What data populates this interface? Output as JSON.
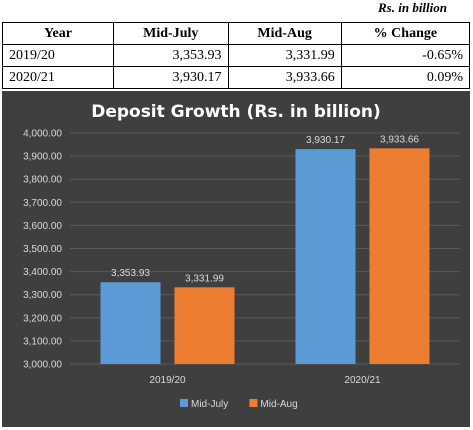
{
  "unit_note": "Rs. in billion",
  "table": {
    "headers": [
      "Year",
      "Mid-July",
      "Mid-Aug",
      "% Change"
    ],
    "rows": [
      [
        "2019/20",
        "3,353.93",
        "3,331.99",
        "-0.65%"
      ],
      [
        "2020/21",
        "3,930.17",
        "3,933.66",
        "0.09%"
      ]
    ]
  },
  "chart_data": {
    "type": "bar",
    "title": "Deposit Growth (Rs. in billion)",
    "categories": [
      "2019/20",
      "2020/21"
    ],
    "series": [
      {
        "name": "Mid-July",
        "values": [
          3353.93,
          3930.17
        ],
        "labels": [
          "3,353.93",
          "3,930.17"
        ],
        "color": "#5b9bd5"
      },
      {
        "name": "Mid-Aug",
        "values": [
          3331.99,
          3933.66
        ],
        "labels": [
          "3,331.99",
          "3,933.66"
        ],
        "color": "#ed7d31"
      }
    ],
    "ylim": [
      3000,
      4000
    ],
    "yticks": [
      3000,
      3100,
      3200,
      3300,
      3400,
      3500,
      3600,
      3700,
      3800,
      3900,
      4000
    ],
    "ytick_labels": [
      "3,000.00",
      "3,100.00",
      "3,200.00",
      "3,300.00",
      "3,400.00",
      "3,500.00",
      "3,600.00",
      "3,700.00",
      "3,800.00",
      "3,900.00",
      "4,000.00"
    ],
    "grid": true,
    "legend": "bottom",
    "background": "#3f3f3f"
  }
}
